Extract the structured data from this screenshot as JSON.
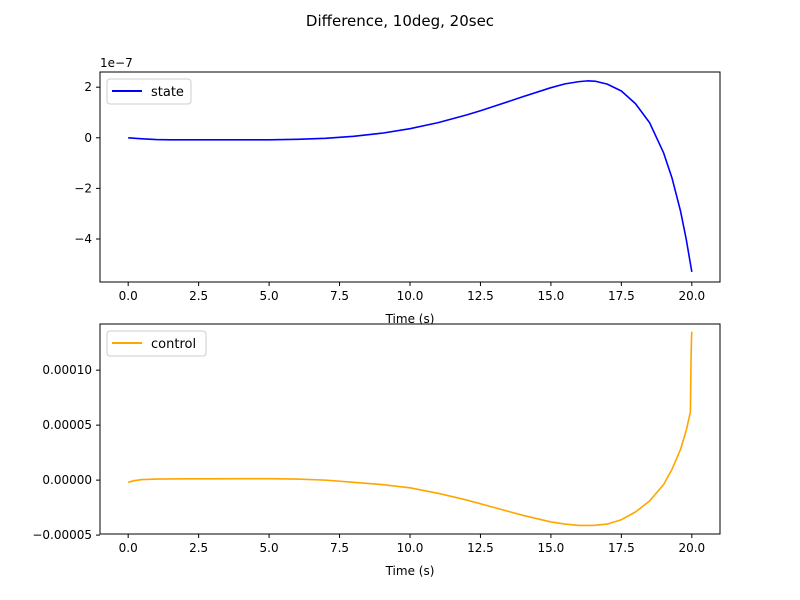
{
  "figure": {
    "title": "Difference, 10deg, 20sec"
  },
  "chart_data": [
    {
      "type": "line",
      "xlabel": "Time (s)",
      "ylabel": "",
      "xlim": [
        -1,
        21
      ],
      "ylim": [
        -5.7e-07,
        2.6e-07
      ],
      "offset_text": "1e−7",
      "scale": 1e-07,
      "xticks": [
        0,
        2.5,
        5,
        7.5,
        10,
        12.5,
        15,
        17.5,
        20
      ],
      "xtick_labels": [
        "0.0",
        "2.5",
        "5.0",
        "7.5",
        "10.0",
        "12.5",
        "15.0",
        "17.5",
        "20.0"
      ],
      "yticks": [
        -4e-07,
        -2e-07,
        0,
        2e-07
      ],
      "ytick_labels": [
        "−4",
        "−2",
        "0",
        "2"
      ],
      "grid": false,
      "legend": "top-left",
      "series": [
        {
          "name": "state",
          "color": "#0000ff",
          "x": [
            0,
            0.5,
            1,
            1.5,
            2,
            3,
            4,
            5,
            6,
            7,
            7.5,
            8,
            9,
            10,
            11,
            12,
            12.5,
            13,
            14,
            15,
            15.5,
            16,
            16.3,
            16.6,
            17,
            17.5,
            18,
            18.5,
            19,
            19.3,
            19.6,
            19.8,
            20
          ],
          "y": [
            0,
            -4e-09,
            -7e-09,
            -8e-09,
            -8e-09,
            -8e-09,
            -8e-09,
            -8e-09,
            -6e-09,
            -2e-09,
            2e-09,
            6e-09,
            1.8e-08,
            3.6e-08,
            6e-08,
            9e-08,
            1.07e-07,
            1.25e-07,
            1.62e-07,
            1.98e-07,
            2.13e-07,
            2.22e-07,
            2.25e-07,
            2.23e-07,
            2.12e-07,
            1.85e-07,
            1.35e-07,
            6e-08,
            -6e-08,
            -1.6e-07,
            -2.9e-07,
            -4e-07,
            -5.3e-07
          ]
        }
      ]
    },
    {
      "type": "line",
      "xlabel": "Time (s)",
      "ylabel": "",
      "xlim": [
        -1,
        21
      ],
      "ylim": [
        -4.9e-05,
        0.000142
      ],
      "xticks": [
        0,
        2.5,
        5,
        7.5,
        10,
        12.5,
        15,
        17.5,
        20
      ],
      "xtick_labels": [
        "0.0",
        "2.5",
        "5.0",
        "7.5",
        "10.0",
        "12.5",
        "15.0",
        "17.5",
        "20.0"
      ],
      "yticks": [
        -5e-05,
        0,
        5e-05,
        0.0001
      ],
      "ytick_labels": [
        "−0.00005",
        "0.00000",
        "0.00005",
        "0.00010"
      ],
      "grid": false,
      "legend": "top-left",
      "series": [
        {
          "name": "control",
          "color": "#ffa500",
          "x": [
            0,
            0.2,
            0.5,
            1,
            2,
            3,
            4,
            5,
            6,
            7,
            8,
            9,
            10,
            11,
            12,
            13,
            14,
            15,
            15.5,
            16,
            16.5,
            17,
            17.5,
            18,
            18.5,
            19,
            19.3,
            19.6,
            19.8,
            19.95,
            19.96,
            19.97,
            19.98,
            19.99,
            20
          ],
          "y": [
            -2e-06,
            -5e-07,
            5e-07,
            1e-06,
            1.2e-06,
            1.2e-06,
            1.3e-06,
            1.3e-06,
            1e-06,
            0,
            -2e-06,
            -4e-06,
            -7e-06,
            -1.2e-05,
            -1.8e-05,
            -2.5e-05,
            -3.2e-05,
            -3.8e-05,
            -4e-05,
            -4.12e-05,
            -4.12e-05,
            -4e-05,
            -3.6e-05,
            -2.9e-05,
            -1.9e-05,
            -4e-06,
            1e-05,
            2.8e-05,
            4.5e-05,
            6.2e-05,
            8.5e-05,
            0.000105,
            0.00012,
            0.00013,
            0.000135
          ]
        }
      ]
    }
  ]
}
